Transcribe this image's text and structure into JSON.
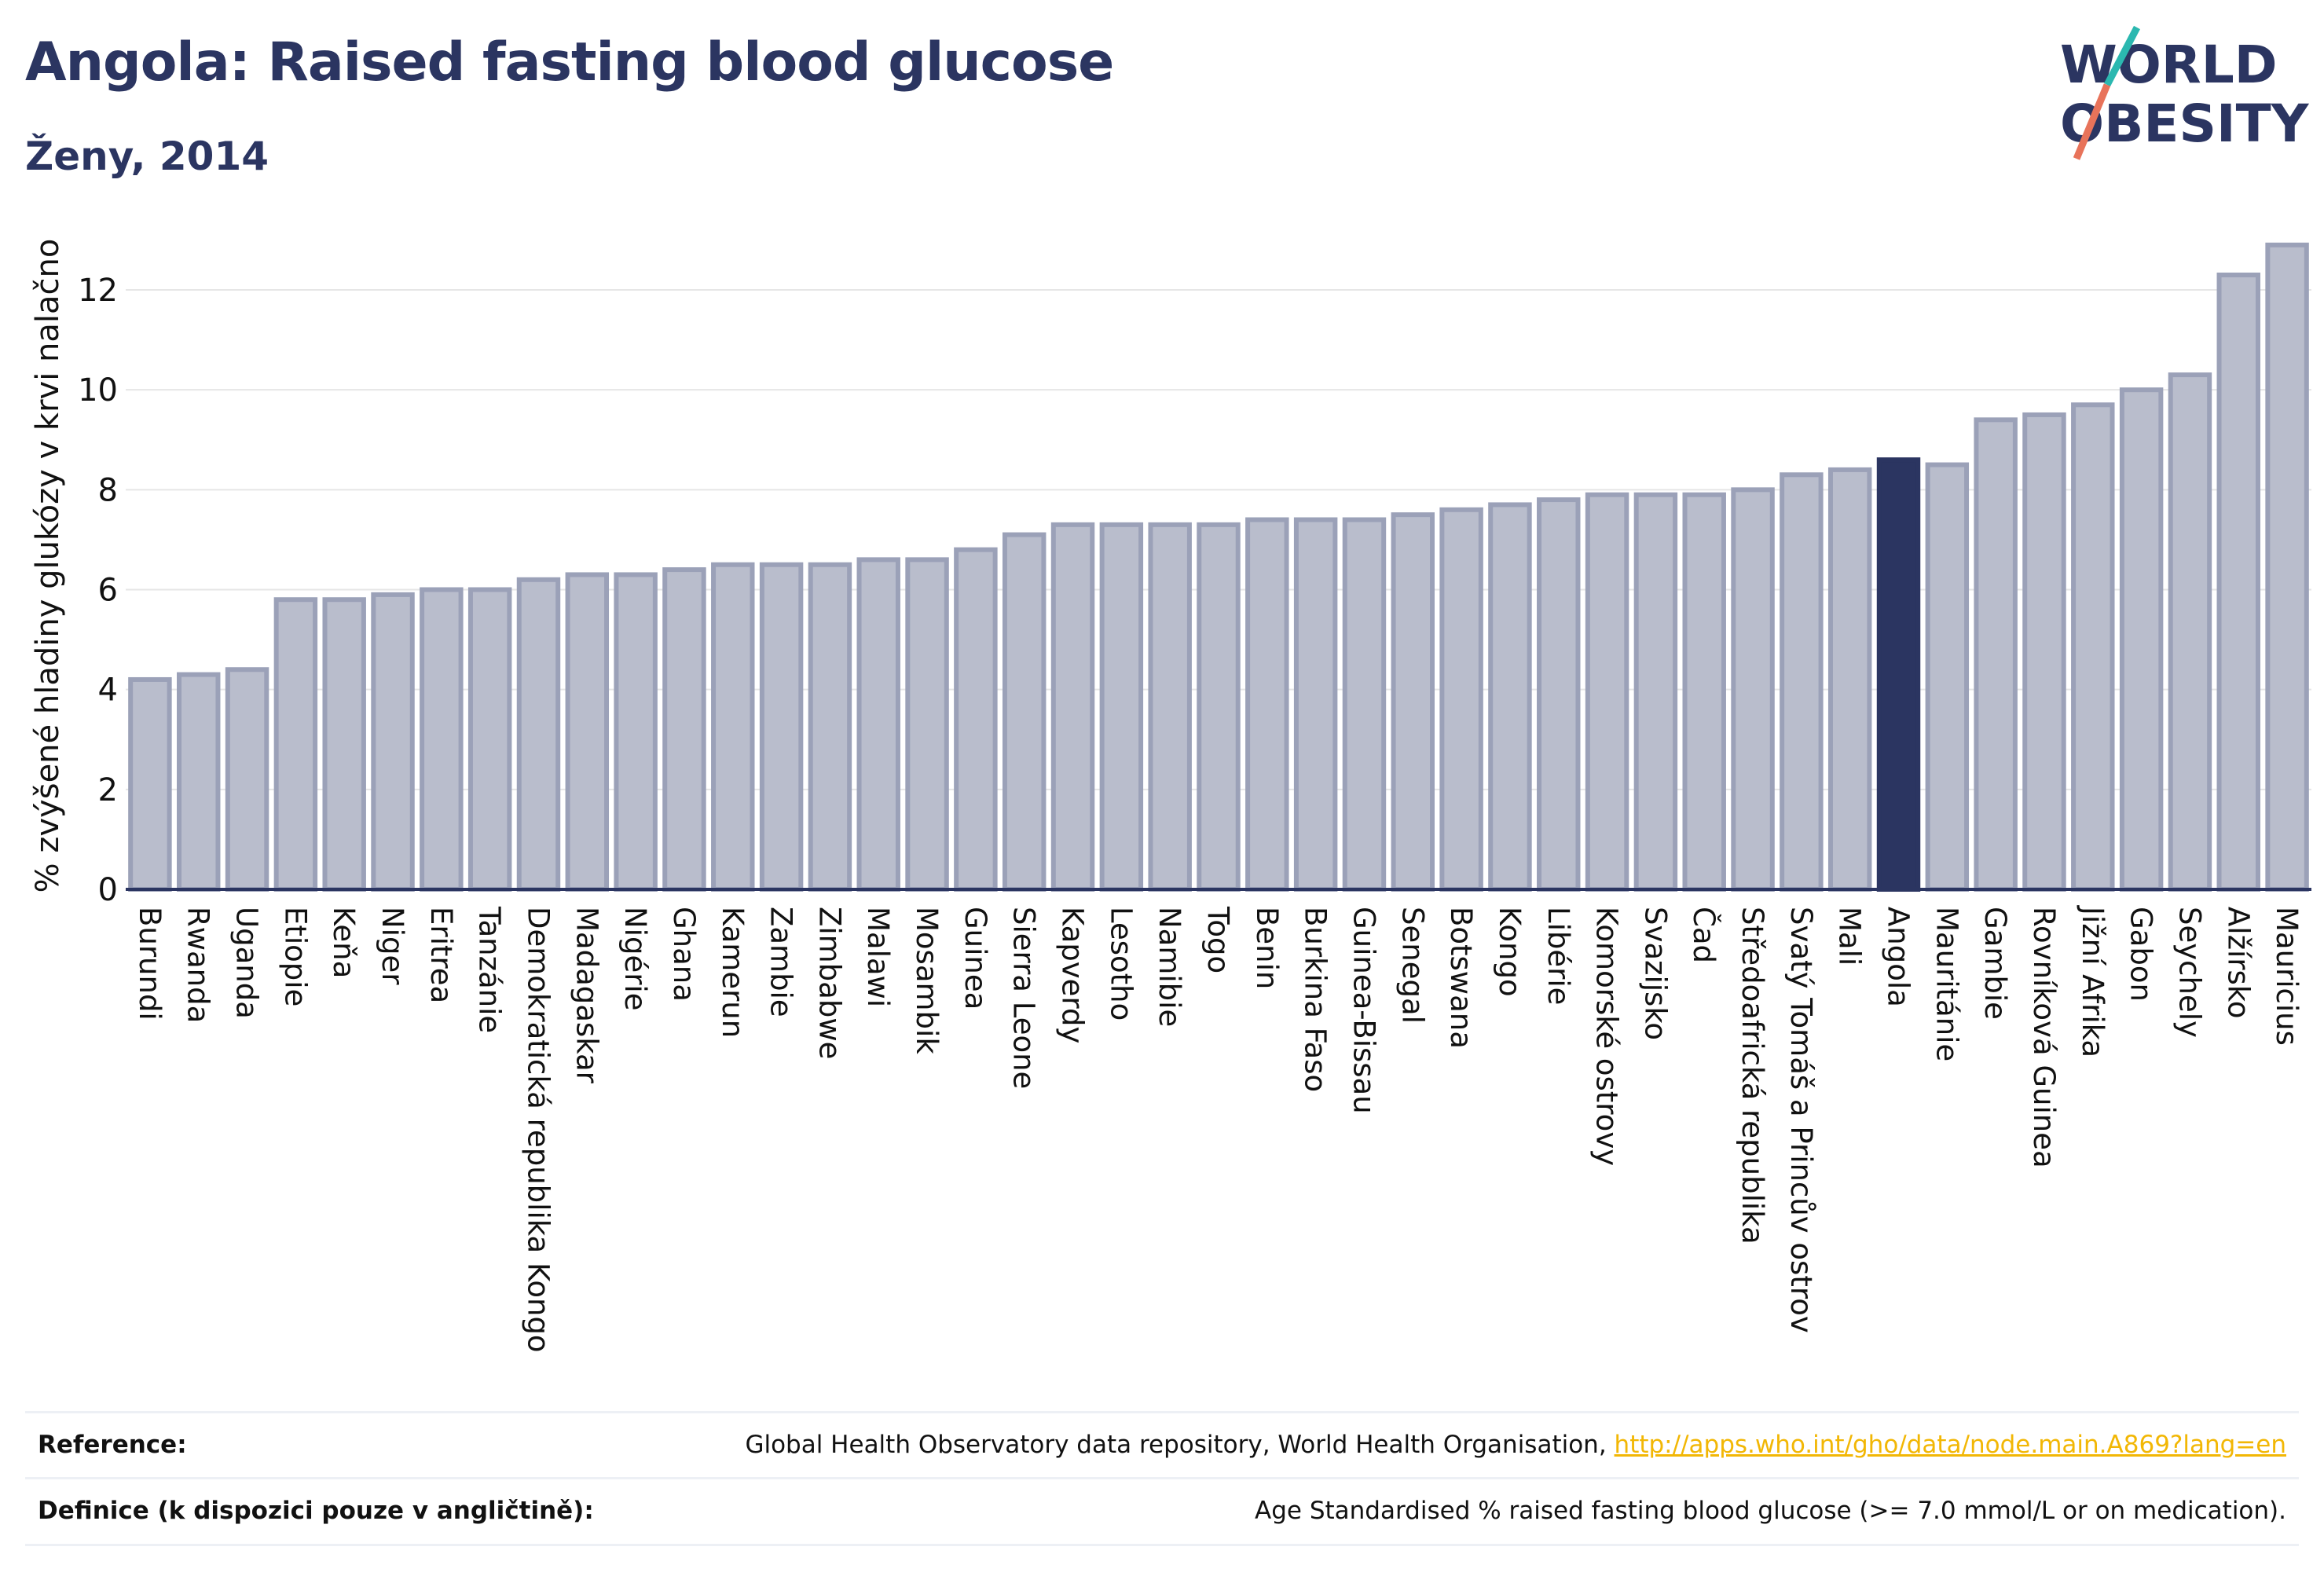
{
  "header": {
    "title": "Angola: Raised fasting blood glucose",
    "subtitle": "Ženy, 2014"
  },
  "logo": {
    "line1": "WORLD",
    "line2": "OBESITY"
  },
  "colors": {
    "bar": "#b9bdcc",
    "bar_outline": "#9ba1b8",
    "highlight": "#2b3561",
    "grid": "#e6e6e6",
    "axis": "#2b3561",
    "title": "#2b3561",
    "logo_teal": "#2bb8b0",
    "logo_coral": "#e8735a",
    "link": "#f2b705"
  },
  "chart_data": {
    "type": "bar",
    "title": "Angola: Raised fasting blood glucose",
    "subtitle": "Ženy, 2014",
    "xlabel": "",
    "ylabel": "% zvýšené hladiny glukózy v krvi nalačno",
    "ylim": [
      0,
      13.4
    ],
    "yticks": [
      0,
      2,
      4,
      6,
      8,
      10,
      12
    ],
    "grid": true,
    "highlight": "Angola",
    "categories": [
      "Burundi",
      "Rwanda",
      "Uganda",
      "Etiopie",
      "Keňa",
      "Niger",
      "Eritrea",
      "Tanzánie",
      "Demokratická republika Kongo",
      "Madagaskar",
      "Nigérie",
      "Ghana",
      "Kamerun",
      "Zambie",
      "Zimbabwe",
      "Malawi",
      "Mosambik",
      "Guinea",
      "Sierra Leone",
      "Kapverdy",
      "Lesotho",
      "Namibie",
      "Togo",
      "Benin",
      "Burkina Faso",
      "Guinea-Bissau",
      "Senegal",
      "Botswana",
      "Kongo",
      "Libérie",
      "Komorské ostrovy",
      "Svazijsko",
      "Čad",
      "Středoafrická republika",
      "Svatý Tomáš a Princův ostrov",
      "Mali",
      "Angola",
      "Mauritánie",
      "Gambie",
      "Rovníková Guinea",
      "Jižní Afrika",
      "Gabon",
      "Seychely",
      "Alžírsko",
      "Mauricius"
    ],
    "values": [
      4.2,
      4.3,
      4.4,
      5.8,
      5.8,
      5.9,
      6.0,
      6.0,
      6.2,
      6.3,
      6.3,
      6.4,
      6.5,
      6.5,
      6.5,
      6.6,
      6.6,
      6.8,
      7.1,
      7.3,
      7.3,
      7.3,
      7.3,
      7.4,
      7.4,
      7.4,
      7.5,
      7.6,
      7.7,
      7.8,
      7.9,
      7.9,
      7.9,
      8.0,
      8.3,
      8.4,
      8.6,
      8.5,
      9.4,
      9.5,
      9.7,
      10.0,
      10.3,
      12.3,
      12.9
    ]
  },
  "footer": {
    "reference_label": "Reference:",
    "reference_text": "Global Health Observatory data repository, World Health Organisation, ",
    "reference_link": "http://apps.who.int/gho/data/node.main.A869?lang=en",
    "definition_label": "Definice (k dispozici pouze v angličtině):",
    "definition_text": "Age Standardised % raised fasting blood glucose (>= 7.0 mmol/L or on medication)."
  }
}
